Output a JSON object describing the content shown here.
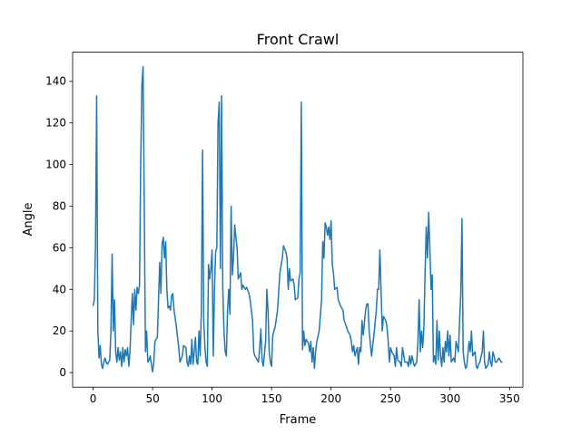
{
  "chart_data": {
    "type": "line",
    "title": "Front Crawl",
    "xlabel": "Frame",
    "ylabel": "Angle",
    "x": [
      0,
      1,
      2,
      3,
      4,
      5,
      6,
      7,
      8,
      9,
      10,
      11,
      12,
      13,
      14,
      15,
      16,
      17,
      18,
      19,
      20,
      21,
      22,
      23,
      24,
      25,
      26,
      27,
      28,
      29,
      30,
      31,
      32,
      33,
      34,
      35,
      36,
      37,
      38,
      39,
      40,
      41,
      42,
      43,
      44,
      45,
      46,
      47,
      48,
      49,
      50,
      51,
      52,
      54,
      55,
      56,
      57,
      58,
      59,
      60,
      61,
      62,
      63,
      64,
      65,
      66,
      67,
      68,
      70,
      72,
      73,
      75,
      76,
      78,
      79,
      80,
      81,
      82,
      83,
      84,
      85,
      86,
      87,
      88,
      89,
      90,
      91,
      92,
      93,
      94,
      95,
      96,
      97,
      98,
      99,
      100,
      101,
      102,
      103,
      104,
      105,
      106,
      107,
      108,
      109,
      110,
      111,
      112,
      113,
      114,
      115,
      116,
      117,
      118,
      119,
      120,
      121,
      122,
      124,
      125,
      126,
      128,
      129,
      131,
      132,
      133,
      134,
      135,
      136,
      137,
      139,
      140,
      141,
      142,
      143,
      145,
      146,
      147,
      148,
      149,
      150,
      151,
      153,
      155,
      157,
      159,
      160,
      162,
      163,
      164,
      165,
      166,
      168,
      169,
      170,
      172,
      173,
      174,
      175,
      176,
      177,
      178,
      179,
      181,
      182,
      183,
      184,
      185,
      186,
      187,
      188,
      190,
      192,
      193,
      194,
      195,
      196,
      197,
      198,
      199,
      200,
      201,
      202,
      203,
      205,
      206,
      208,
      210,
      211,
      213,
      214,
      216,
      217,
      218,
      219,
      220,
      222,
      223,
      224,
      225,
      226,
      227,
      228,
      229,
      230,
      231,
      232,
      234,
      236,
      238,
      239,
      240,
      241,
      242,
      243,
      244,
      246,
      247,
      248,
      249,
      250,
      251,
      253,
      254,
      255,
      256,
      258,
      259,
      260,
      262,
      264,
      265,
      266,
      267,
      268,
      270,
      272,
      273,
      274,
      275,
      276,
      277,
      278,
      279,
      280,
      281,
      282,
      283,
      284,
      285,
      286,
      287,
      288,
      289,
      290,
      291,
      292,
      293,
      294,
      295,
      296,
      297,
      298,
      299,
      300,
      301,
      303,
      304,
      305,
      307,
      308,
      309,
      310,
      311,
      312,
      313,
      314,
      316,
      317,
      318,
      319,
      321,
      322,
      323,
      324,
      325,
      327,
      328,
      329,
      330,
      331,
      332,
      333,
      334,
      335,
      336,
      337,
      338,
      339,
      340,
      341,
      342,
      343,
      344
    ],
    "series": [
      {
        "name": "Angle",
        "color": "#1f77b4",
        "values": [
          32,
          35,
          60,
          133,
          20,
          7,
          13,
          4,
          2,
          5,
          7,
          5,
          4,
          5,
          6,
          20,
          57,
          20,
          35,
          10,
          5,
          12,
          6,
          10,
          3,
          12,
          5,
          11,
          8,
          12,
          3,
          10,
          25,
          38,
          23,
          40,
          30,
          41,
          38,
          42,
          100,
          138,
          147,
          80,
          10,
          20,
          5,
          6,
          8,
          4,
          0.3,
          5,
          15,
          17,
          35,
          53,
          38,
          62,
          65,
          55,
          63,
          40,
          31,
          32,
          30,
          37,
          38,
          30,
          22,
          12,
          5,
          8,
          13,
          12,
          5,
          3,
          8,
          4,
          16,
          4,
          10,
          17,
          5,
          4,
          20,
          8,
          30,
          107,
          25,
          12,
          5,
          3,
          52,
          45,
          50,
          59,
          8,
          40,
          58,
          60,
          120,
          130,
          50,
          133,
          40,
          20,
          10,
          8,
          30,
          40,
          28,
          80,
          47,
          55,
          71,
          65,
          60,
          45,
          48,
          40,
          42,
          40,
          41,
          38,
          35,
          30,
          25,
          10,
          8,
          7,
          5,
          12,
          21,
          6,
          3,
          15,
          40,
          30,
          10,
          5,
          3,
          18,
          22,
          30,
          48,
          55,
          61,
          58,
          55,
          40,
          50,
          44,
          45,
          42,
          35,
          36,
          45,
          48,
          130,
          11,
          20,
          13,
          16,
          14,
          10,
          15,
          5,
          12,
          2,
          10,
          15,
          20,
          35,
          63,
          55,
          72,
          70,
          66,
          70,
          64,
          73,
          52,
          48,
          40,
          41,
          35,
          32,
          30,
          25,
          22,
          20,
          18,
          15,
          10,
          13,
          8,
          12,
          4,
          12,
          10,
          25,
          18,
          24,
          30,
          33,
          33,
          20,
          8,
          18,
          30,
          40,
          40,
          59,
          40,
          20,
          27,
          25,
          22,
          15,
          5,
          12,
          10,
          8,
          3,
          12,
          6,
          5,
          3,
          12,
          5,
          5,
          3,
          8,
          4,
          8,
          3,
          5,
          15,
          35,
          10,
          20,
          12,
          22,
          48,
          70,
          55,
          77,
          60,
          40,
          47,
          5,
          8,
          4,
          25,
          6,
          20,
          8,
          3,
          12,
          5,
          15,
          10,
          20,
          8,
          18,
          5,
          7,
          5,
          15,
          10,
          25,
          38,
          74,
          10,
          5,
          2,
          3,
          15,
          10,
          20,
          8,
          10,
          3,
          2,
          4,
          5,
          10,
          20,
          5,
          2,
          3,
          4,
          10,
          5,
          3,
          10,
          8,
          5,
          5,
          6,
          7,
          6,
          5,
          5
        ]
      }
    ],
    "xlim": [
      -17.2,
      361.2
    ],
    "ylim": [
      -7,
      154
    ],
    "xticks": [
      0,
      50,
      100,
      150,
      200,
      250,
      300,
      350
    ],
    "yticks": [
      0,
      20,
      40,
      60,
      80,
      100,
      120,
      140
    ]
  }
}
